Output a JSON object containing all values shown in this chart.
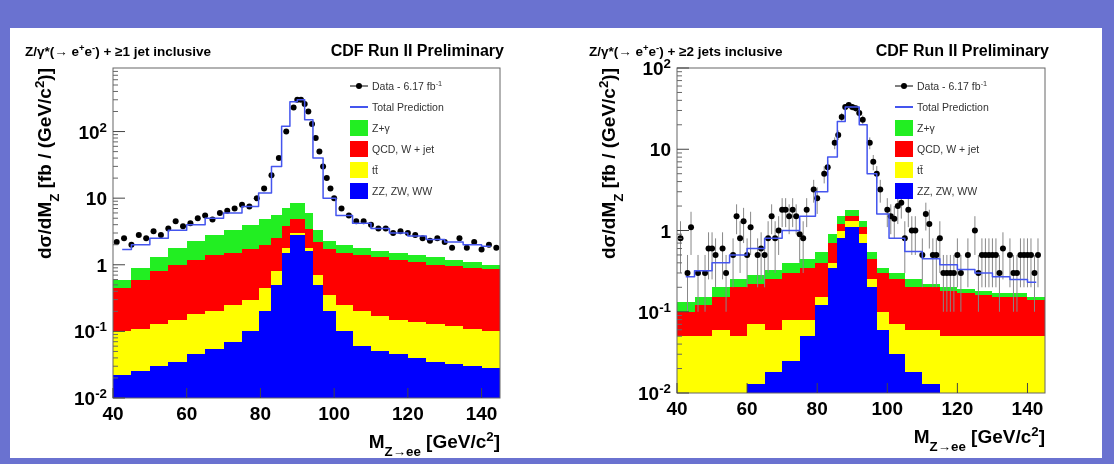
{
  "chart_data": [
    {
      "type": "bar",
      "stacked": true,
      "title": "Z/γ*(→ e$^{+}$e$^{-}$) + ≥1 jet inclusive",
      "subtitle": "CDF Run II Preliminary",
      "xlabel": "M$_{Z→ee}$ [GeV/c$^{2}$]",
      "ylabel": "dσ/dM$_{Z}$  [fb / (GeV/c$^{2}$)]",
      "log": true,
      "legend": "top right",
      "xlim": [
        40,
        145
      ],
      "xticks": [
        40,
        60,
        80,
        100,
        120,
        140
      ],
      "ylim": [
        0.01,
        900
      ],
      "yticks": [
        {
          "value": 0.01,
          "label": "10$^{-2}$"
        },
        {
          "value": 0.1,
          "label": "10$^{-1}$"
        },
        {
          "value": 1,
          "label": "1"
        },
        {
          "value": 10,
          "label": "10"
        },
        {
          "value": 100,
          "label": "10$^{2}$"
        }
      ],
      "x": [
        42.5,
        47.5,
        52.5,
        57.5,
        62.5,
        67.5,
        72.5,
        77.5,
        81.5,
        84.5,
        87,
        89,
        91,
        93,
        95.5,
        98.5,
        102.5,
        107.5,
        112.5,
        117.5,
        122.5,
        127.5,
        132.5,
        137.5,
        142.5
      ],
      "series": [
        {
          "name": "Data - 6.17 fb$^{-1}$",
          "type": "scatter",
          "marker": "circle",
          "color": "#000000",
          "x": [
            41,
            43,
            45,
            47,
            49,
            51,
            53,
            55,
            57,
            59,
            61,
            63,
            65,
            67,
            69,
            71,
            73,
            75,
            77,
            79,
            81,
            83,
            85,
            87,
            89,
            90,
            91,
            92,
            93,
            94,
            95,
            96,
            97,
            98,
            99,
            100,
            102,
            104,
            106,
            108,
            110,
            112,
            114,
            116,
            118,
            120,
            122,
            124,
            126,
            128,
            130,
            132,
            134,
            136,
            138,
            140,
            142,
            144
          ],
          "values": [
            2.2,
            2.5,
            2.0,
            2.8,
            2.5,
            3.2,
            2.8,
            3.5,
            4.5,
            3.8,
            4.2,
            5,
            5.5,
            4.8,
            6,
            6.5,
            7,
            8,
            7.5,
            10,
            14,
            22,
            40,
            100,
            230,
            300,
            300,
            260,
            200,
            130,
            80,
            50,
            30,
            20,
            14,
            10,
            7,
            5.5,
            4.5,
            4.5,
            4,
            3.5,
            3.5,
            3,
            3.2,
            3,
            2.8,
            2.5,
            2.3,
            2.5,
            2.2,
            1.8,
            2.5,
            1.8,
            2.2,
            1.7,
            2.0,
            1.8
          ]
        },
        {
          "name": "Total Prediction",
          "type": "step",
          "color": "#4455ee",
          "x": [
            42.5,
            47.5,
            52.5,
            57.5,
            62.5,
            67.5,
            72.5,
            77.5,
            81.5,
            84.5,
            87,
            89,
            91,
            93,
            95.5,
            98.5,
            102.5,
            107.5,
            112.5,
            117.5,
            122.5,
            127.5,
            132.5,
            137.5,
            142.5
          ],
          "values": [
            1.7,
            2.0,
            2.5,
            3.3,
            4,
            5,
            6,
            7.5,
            12,
            30,
            120,
            280,
            300,
            150,
            40,
            10,
            5.5,
            4.2,
            3.5,
            3,
            2.7,
            2.4,
            2.2,
            2.0,
            1.9
          ]
        },
        {
          "name": "ZZ, ZW, WW",
          "color": "#0000ff",
          "values": [
            0.022,
            0.025,
            0.03,
            0.035,
            0.045,
            0.055,
            0.07,
            0.1,
            0.2,
            0.5,
            1.5,
            2.8,
            2.8,
            1.6,
            0.5,
            0.2,
            0.1,
            0.06,
            0.05,
            0.045,
            0.04,
            0.035,
            0.032,
            0.03,
            0.028
          ]
        },
        {
          "name": "tt̄",
          "color": "#ffff00",
          "values": [
            0.078,
            0.085,
            0.1,
            0.115,
            0.135,
            0.145,
            0.18,
            0.2,
            0.25,
            0.3,
            0.3,
            0.2,
            0.2,
            0.2,
            0.2,
            0.15,
            0.15,
            0.14,
            0.12,
            0.105,
            0.1,
            0.095,
            0.088,
            0.08,
            0.072
          ]
        },
        {
          "name": "QCD, W + jet",
          "color": "#ff0000",
          "values": [
            0.35,
            0.49,
            0.67,
            0.85,
            1.02,
            1.2,
            1.25,
            1.4,
            1.55,
            1.7,
            2.0,
            1.8,
            1.8,
            1.7,
            1.5,
            1.35,
            1.25,
            1.2,
            1.13,
            1.05,
            0.96,
            0.87,
            0.83,
            0.79,
            0.75
          ]
        },
        {
          "name": "Z+γ",
          "color": "#22ee22",
          "values": [
            0.15,
            0.3,
            0.5,
            0.8,
            1.1,
            1.4,
            1.8,
            2.3,
            2.8,
            3.0,
            3.2,
            3.7,
            3.7,
            2.5,
            1.1,
            0.6,
            0.5,
            0.4,
            0.3,
            0.3,
            0.3,
            0.3,
            0.25,
            0.2,
            0.15
          ]
        }
      ]
    },
    {
      "type": "bar",
      "stacked": true,
      "title": "Z/γ*(→ e$^{+}$e$^{-}$) + ≥2 jets inclusive",
      "subtitle": "CDF Run II Preliminary",
      "xlabel": "M$_{Z→ee}$ [GeV/c$^{2}$]",
      "ylabel": "dσ/dM$_{Z}$  [fb / (GeV/c$^{2}$)]",
      "log": true,
      "legend": "top right",
      "xlim": [
        40,
        145
      ],
      "xticks": [
        40,
        60,
        80,
        100,
        120,
        140
      ],
      "ylim": [
        0.01,
        100
      ],
      "yticks": [
        {
          "value": 0.01,
          "label": "10$^{-2}$"
        },
        {
          "value": 0.1,
          "label": "10$^{-1}$"
        },
        {
          "value": 1,
          "label": "1"
        },
        {
          "value": 10,
          "label": "10"
        },
        {
          "value": 100,
          "label": "10$^{2}$"
        }
      ],
      "x": [
        42.5,
        47.5,
        52.5,
        57.5,
        62.5,
        67.5,
        72.5,
        77.5,
        81.5,
        84.5,
        87,
        89,
        91,
        93,
        95.5,
        98.5,
        102.5,
        107.5,
        112.5,
        117.5,
        122.5,
        127.5,
        132.5,
        137.5,
        142.5
      ],
      "series": [
        {
          "name": "Data - 6.17 fb$^{-1}$",
          "type": "scatter",
          "marker": "circle",
          "color": "#000000",
          "x": [
            41,
            43,
            44,
            46,
            48,
            49,
            50,
            51,
            53,
            54,
            56,
            57,
            58,
            59,
            60,
            61,
            63,
            64,
            65,
            66,
            67,
            68,
            69,
            70,
            71,
            72,
            73,
            74,
            75,
            76,
            77,
            79,
            80,
            82,
            83,
            85,
            86,
            87,
            88,
            89,
            90,
            91,
            92,
            93,
            95,
            96,
            97,
            98,
            100,
            101,
            102,
            103,
            104,
            105,
            106,
            107,
            108,
            110,
            111,
            112,
            113,
            114,
            115,
            116,
            117,
            118,
            119,
            120,
            121,
            123,
            125,
            126,
            127,
            128,
            129,
            130,
            131,
            132,
            133,
            135,
            136,
            137,
            138,
            139,
            140,
            141,
            142,
            143
          ],
          "values": [
            0.8,
            0.3,
            1.1,
            0.3,
            0.3,
            0.6,
            0.6,
            0.5,
            0.6,
            0.3,
            0.5,
            1.5,
            0.8,
            1.3,
            0.5,
            1.1,
            0.5,
            0.6,
            0.5,
            0.8,
            1.5,
            0.8,
            1.0,
            1.8,
            1.8,
            1.5,
            1.8,
            1.5,
            0.9,
            0.8,
            1.8,
            3.2,
            2.5,
            5,
            6,
            12,
            15,
            25,
            33,
            35,
            33,
            32,
            28,
            23,
            12,
            7,
            5,
            3.2,
            1.8,
            1.5,
            1.4,
            2.0,
            2.2,
            0.8,
            1.8,
            1.0,
            1.0,
            0.5,
            1.6,
            1.2,
            0.5,
            0.5,
            0.8,
            0.3,
            0.3,
            0.3,
            0.3,
            0.5,
            0.3,
            0.5,
            1.0,
            0.3,
            0.5,
            0.5,
            0.5,
            0.5,
            0.5,
            0.3,
            0.6,
            0.5,
            0.3,
            0.3,
            0.5,
            0.5,
            0.5,
            0.5,
            0.3,
            0.5
          ],
          "errors": [
            0.5,
            0.2,
            0.6,
            0.2,
            0.2,
            0.35,
            0.35,
            0.3,
            0.35,
            0.2,
            0.3,
            0.6,
            0.5,
            0.6,
            0.3,
            0.6,
            0.3,
            0.35,
            0.3,
            0.5,
            0.6,
            0.5,
            0.5,
            0.7,
            0.7,
            0.6,
            0.7,
            0.6,
            0.5,
            0.5,
            0.7,
            1,
            0.9,
            1.2,
            1.3,
            2,
            2,
            3,
            3,
            3,
            3,
            3,
            3,
            3,
            2,
            1.5,
            1.2,
            1,
            0.7,
            0.6,
            0.6,
            0.8,
            0.8,
            0.5,
            0.7,
            0.5,
            0.5,
            0.3,
            0.6,
            0.6,
            0.3,
            0.3,
            0.5,
            0.2,
            0.2,
            0.2,
            0.2,
            0.3,
            0.2,
            0.3,
            0.5,
            0.2,
            0.3,
            0.3,
            0.3,
            0.3,
            0.3,
            0.2,
            0.35,
            0.3,
            0.2,
            0.2,
            0.3,
            0.3,
            0.3,
            0.3,
            0.2,
            0.3
          ]
        },
        {
          "name": "Total Prediction",
          "type": "step",
          "color": "#4455ee",
          "x": [
            42.5,
            47.5,
            52.5,
            57.5,
            62.5,
            67.5,
            72.5,
            77.5,
            81.5,
            84.5,
            87,
            89,
            91,
            93,
            95.5,
            98.5,
            102.5,
            107.5,
            112.5,
            117.5,
            122.5,
            127.5,
            132.5,
            137.5,
            142.5
          ],
          "values": [
            0.27,
            0.32,
            0.4,
            0.5,
            0.6,
            0.8,
            1.0,
            1.5,
            3,
            8,
            22,
            33,
            33,
            20,
            5,
            1.6,
            0.8,
            0.55,
            0.45,
            0.38,
            0.33,
            0.3,
            0.27,
            0.25,
            0.23
          ]
        },
        {
          "name": "ZZ, ZW, WW",
          "color": "#0000ff",
          "values": [
            null,
            null,
            null,
            null,
            0.013,
            0.018,
            0.025,
            0.05,
            0.12,
            0.35,
            0.8,
            1.1,
            1.1,
            0.7,
            0.2,
            0.06,
            0.03,
            0.018,
            0.013,
            null,
            null,
            null,
            null,
            null,
            null
          ]
        },
        {
          "name": "tt̄",
          "color": "#ffff00",
          "values": [
            0.05,
            0.05,
            0.06,
            0.05,
            0.057,
            0.042,
            0.055,
            0.03,
            0.03,
            0.05,
            0.2,
            0.2,
            0.2,
            0.2,
            0.05,
            0.04,
            0.04,
            0.042,
            0.047,
            0.05,
            0.05,
            0.05,
            0.05,
            0.05,
            0.05
          ]
        },
        {
          "name": "QCD, W + jet",
          "color": "#ff0000",
          "values": [
            0.05,
            0.07,
            0.09,
            0.15,
            0.15,
            0.19,
            0.22,
            0.27,
            0.25,
            0.3,
            0.2,
            0.2,
            0.2,
            0.2,
            0.2,
            0.2,
            0.18,
            0.14,
            0.14,
            0.13,
            0.12,
            0.11,
            0.1,
            0.1,
            0.09
          ]
        },
        {
          "name": "Z+γ",
          "color": "#22ee22",
          "values": [
            0.03,
            0.03,
            0.05,
            0.05,
            0.06,
            0.08,
            0.1,
            0.1,
            0.15,
            0.2,
            0.3,
            0.3,
            0.3,
            0.2,
            0.1,
            0.05,
            0.05,
            0.05,
            0.02,
            0.02,
            0.02,
            0.02,
            0.02,
            0.02,
            0.01
          ]
        }
      ]
    }
  ]
}
